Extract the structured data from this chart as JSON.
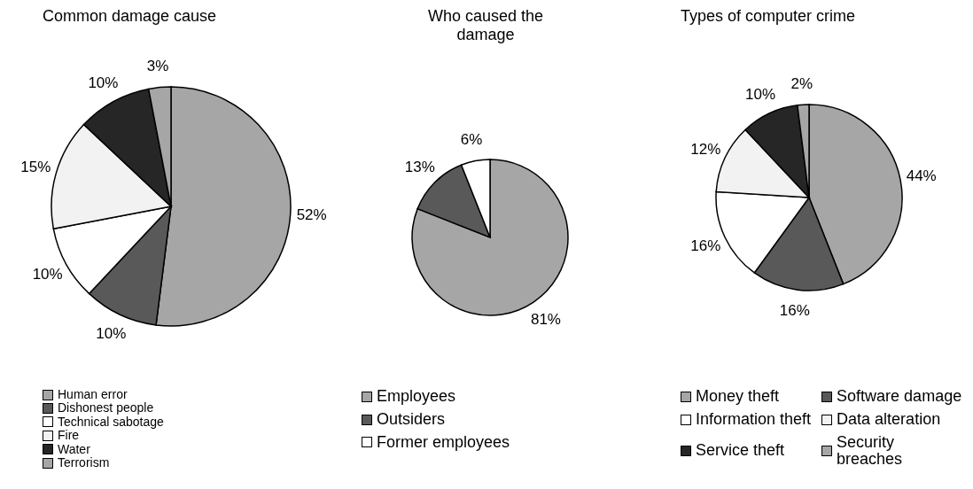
{
  "chart_data": [
    {
      "type": "pie",
      "title": "Common damage cause",
      "categories": [
        "Human error",
        "Dishonest people",
        "Technical sabotage",
        "Fire",
        "Water",
        "Terrorism"
      ],
      "values": [
        52,
        10,
        10,
        15,
        10,
        3
      ],
      "value_labels": [
        "52%",
        "10%",
        "10%",
        "15%",
        "10%",
        "3%"
      ],
      "colors": [
        "#a6a6a6",
        "#595959",
        "#ffffff",
        "#f2f2f2",
        "#262626",
        "#a6a6a6"
      ],
      "legend": "bottom"
    },
    {
      "type": "pie",
      "title": "Who caused the damage",
      "categories": [
        "Employees",
        "Outsiders",
        "Former employees"
      ],
      "values": [
        81,
        13,
        6
      ],
      "value_labels": [
        "81%",
        "13%",
        "6%"
      ],
      "colors": [
        "#a6a6a6",
        "#595959",
        "#ffffff"
      ],
      "legend": "bottom"
    },
    {
      "type": "pie",
      "title": "Types of computer crime",
      "categories": [
        "Money theft",
        "Software damage",
        "Information theft",
        "Data alteration",
        "Service theft",
        "Security breaches"
      ],
      "values": [
        44,
        16,
        16,
        12,
        10,
        2
      ],
      "value_labels": [
        "44%",
        "16%",
        "16%",
        "12%",
        "10%",
        "2%"
      ],
      "colors": [
        "#a6a6a6",
        "#595959",
        "#ffffff",
        "#f2f2f2",
        "#262626",
        "#a6a6a6"
      ],
      "legend": "bottom"
    }
  ]
}
